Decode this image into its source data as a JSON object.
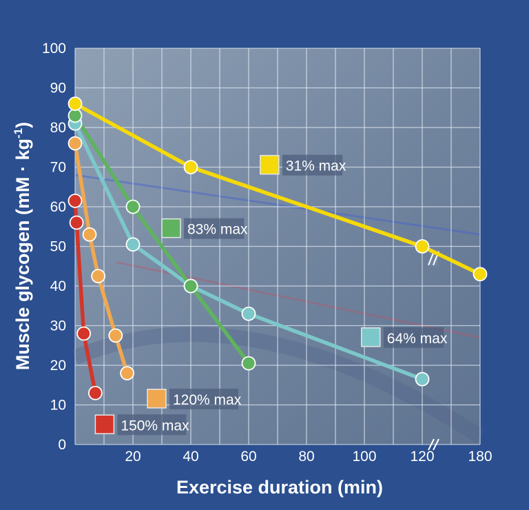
{
  "chart_data": {
    "type": "line",
    "xlabel": "Exercise duration (min)",
    "ylabel_main": "Muscle glycogen (mM · kg",
    "ylabel_sup": "-1",
    "ylabel_close": ")",
    "ylim": [
      0,
      100
    ],
    "x_ticks": [
      "20",
      "40",
      "60",
      "80",
      "100",
      "120",
      "180"
    ],
    "y_ticks": [
      "0",
      "10",
      "20",
      "30",
      "40",
      "50",
      "60",
      "70",
      "80",
      "90",
      "100"
    ],
    "grid": true,
    "axis_break": "between 120 and 180",
    "series": [
      {
        "name": "31% max",
        "color": "#f5d90a",
        "points": [
          [
            0,
            86
          ],
          [
            40,
            70
          ],
          [
            120,
            50
          ],
          [
            180,
            43
          ]
        ]
      },
      {
        "name": "83% max",
        "color": "#5fb35f",
        "points": [
          [
            0,
            83
          ],
          [
            20,
            60
          ],
          [
            40,
            40
          ],
          [
            60,
            20.5
          ]
        ]
      },
      {
        "name": "64% max",
        "color": "#7cc7c9",
        "points": [
          [
            0,
            81
          ],
          [
            20,
            50.5
          ],
          [
            40,
            40
          ],
          [
            60,
            33
          ],
          [
            120,
            16.5
          ]
        ]
      },
      {
        "name": "120% max",
        "color": "#f0a850",
        "points": [
          [
            0,
            76
          ],
          [
            5,
            53
          ],
          [
            8,
            42.5
          ],
          [
            14,
            27.5
          ],
          [
            18,
            18
          ]
        ]
      },
      {
        "name": "150% max",
        "color": "#d4352a",
        "points": [
          [
            0,
            61.5
          ],
          [
            0.5,
            56
          ],
          [
            3,
            28
          ],
          [
            7,
            13
          ]
        ]
      }
    ]
  }
}
